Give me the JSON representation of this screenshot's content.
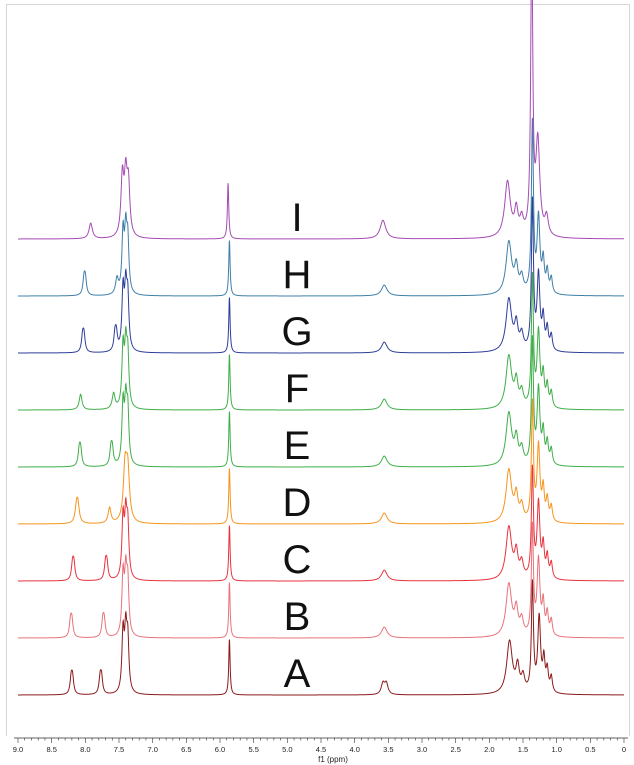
{
  "chart_data": {
    "type": "line",
    "title": "",
    "xlabel": "f1 (ppm)",
    "ylabel": "",
    "x_reversed": true,
    "xlim": [
      9.0,
      0.0
    ],
    "x_ticks": [
      "9.0",
      "8.5",
      "8.0",
      "7.5",
      "7.0",
      "6.5",
      "6.0",
      "5.5",
      "5.0",
      "4.5",
      "4.0",
      "3.5",
      "3.0",
      "2.5",
      "2.0",
      "1.5",
      "1.0",
      "0.5",
      "0"
    ],
    "grid": false,
    "legend": "none",
    "series": [
      {
        "name": "A",
        "color": "#8b1a1a",
        "peaks": [
          {
            "ppm": 8.21,
            "h": 0.05,
            "w": 0.02
          },
          {
            "ppm": 8.19,
            "h": 0.05,
            "w": 0.02
          },
          {
            "ppm": 7.78,
            "h": 0.05,
            "w": 0.02
          },
          {
            "ppm": 7.76,
            "h": 0.05,
            "w": 0.02
          },
          {
            "ppm": 7.44,
            "h": 0.19,
            "w": 0.02
          },
          {
            "ppm": 7.4,
            "h": 0.18,
            "w": 0.02
          },
          {
            "ppm": 7.37,
            "h": 0.16,
            "w": 0.02
          },
          {
            "ppm": 5.86,
            "h": 0.18,
            "w": 0.012
          },
          {
            "ppm": 3.58,
            "h": 0.035,
            "w": 0.03
          },
          {
            "ppm": 3.53,
            "h": 0.035,
            "w": 0.03
          },
          {
            "ppm": 1.7,
            "h": 0.17,
            "w": 0.05
          },
          {
            "ppm": 1.58,
            "h": 0.08,
            "w": 0.03
          },
          {
            "ppm": 1.5,
            "h": 0.05,
            "w": 0.03
          },
          {
            "ppm": 1.36,
            "h": 0.35,
            "w": 0.018
          },
          {
            "ppm": 1.26,
            "h": 0.24,
            "w": 0.025
          },
          {
            "ppm": 1.19,
            "h": 0.1,
            "w": 0.02
          },
          {
            "ppm": 1.14,
            "h": 0.07,
            "w": 0.02
          },
          {
            "ppm": 1.08,
            "h": 0.05,
            "w": 0.02
          }
        ]
      },
      {
        "name": "B",
        "color": "#e8727b",
        "peaks": [
          {
            "ppm": 8.22,
            "h": 0.05,
            "w": 0.02
          },
          {
            "ppm": 8.2,
            "h": 0.05,
            "w": 0.02
          },
          {
            "ppm": 7.74,
            "h": 0.05,
            "w": 0.02
          },
          {
            "ppm": 7.72,
            "h": 0.05,
            "w": 0.02
          },
          {
            "ppm": 7.44,
            "h": 0.19,
            "w": 0.02
          },
          {
            "ppm": 7.4,
            "h": 0.18,
            "w": 0.02
          },
          {
            "ppm": 7.37,
            "h": 0.16,
            "w": 0.02
          },
          {
            "ppm": 5.86,
            "h": 0.18,
            "w": 0.012
          },
          {
            "ppm": 3.56,
            "h": 0.035,
            "w": 0.05
          },
          {
            "ppm": 1.71,
            "h": 0.17,
            "w": 0.05
          },
          {
            "ppm": 1.6,
            "h": 0.08,
            "w": 0.03
          },
          {
            "ppm": 1.52,
            "h": 0.05,
            "w": 0.03
          },
          {
            "ppm": 1.36,
            "h": 0.35,
            "w": 0.018
          },
          {
            "ppm": 1.27,
            "h": 0.24,
            "w": 0.025
          },
          {
            "ppm": 1.2,
            "h": 0.1,
            "w": 0.02
          },
          {
            "ppm": 1.14,
            "h": 0.07,
            "w": 0.02
          },
          {
            "ppm": 1.08,
            "h": 0.05,
            "w": 0.02
          }
        ]
      },
      {
        "name": "C",
        "color": "#e8323c",
        "peaks": [
          {
            "ppm": 8.19,
            "h": 0.05,
            "w": 0.02
          },
          {
            "ppm": 8.17,
            "h": 0.05,
            "w": 0.02
          },
          {
            "ppm": 7.7,
            "h": 0.05,
            "w": 0.02
          },
          {
            "ppm": 7.68,
            "h": 0.05,
            "w": 0.02
          },
          {
            "ppm": 7.44,
            "h": 0.19,
            "w": 0.02
          },
          {
            "ppm": 7.4,
            "h": 0.18,
            "w": 0.02
          },
          {
            "ppm": 7.37,
            "h": 0.16,
            "w": 0.02
          },
          {
            "ppm": 5.86,
            "h": 0.18,
            "w": 0.012
          },
          {
            "ppm": 3.56,
            "h": 0.035,
            "w": 0.05
          },
          {
            "ppm": 1.71,
            "h": 0.17,
            "w": 0.05
          },
          {
            "ppm": 1.6,
            "h": 0.08,
            "w": 0.03
          },
          {
            "ppm": 1.52,
            "h": 0.05,
            "w": 0.03
          },
          {
            "ppm": 1.36,
            "h": 0.35,
            "w": 0.018
          },
          {
            "ppm": 1.27,
            "h": 0.24,
            "w": 0.025
          },
          {
            "ppm": 1.2,
            "h": 0.1,
            "w": 0.02
          },
          {
            "ppm": 1.14,
            "h": 0.07,
            "w": 0.02
          },
          {
            "ppm": 1.08,
            "h": 0.05,
            "w": 0.02
          }
        ]
      },
      {
        "name": "D",
        "color": "#f7941d",
        "peaks": [
          {
            "ppm": 8.13,
            "h": 0.05,
            "w": 0.025
          },
          {
            "ppm": 8.11,
            "h": 0.05,
            "w": 0.025
          },
          {
            "ppm": 7.64,
            "h": 0.05,
            "w": 0.025
          },
          {
            "ppm": 7.41,
            "h": 0.17,
            "w": 0.03
          },
          {
            "ppm": 7.37,
            "h": 0.16,
            "w": 0.03
          },
          {
            "ppm": 5.86,
            "h": 0.18,
            "w": 0.012
          },
          {
            "ppm": 3.56,
            "h": 0.035,
            "w": 0.05
          },
          {
            "ppm": 1.71,
            "h": 0.17,
            "w": 0.05
          },
          {
            "ppm": 1.6,
            "h": 0.08,
            "w": 0.03
          },
          {
            "ppm": 1.52,
            "h": 0.05,
            "w": 0.03
          },
          {
            "ppm": 1.36,
            "h": 0.38,
            "w": 0.018
          },
          {
            "ppm": 1.27,
            "h": 0.24,
            "w": 0.025
          },
          {
            "ppm": 1.2,
            "h": 0.1,
            "w": 0.02
          },
          {
            "ppm": 1.14,
            "h": 0.07,
            "w": 0.02
          },
          {
            "ppm": 1.08,
            "h": 0.05,
            "w": 0.02
          }
        ]
      },
      {
        "name": "E",
        "color": "#3fae49",
        "peaks": [
          {
            "ppm": 8.09,
            "h": 0.05,
            "w": 0.02
          },
          {
            "ppm": 8.07,
            "h": 0.05,
            "w": 0.02
          },
          {
            "ppm": 7.62,
            "h": 0.05,
            "w": 0.02
          },
          {
            "ppm": 7.6,
            "h": 0.05,
            "w": 0.02
          },
          {
            "ppm": 7.44,
            "h": 0.19,
            "w": 0.02
          },
          {
            "ppm": 7.4,
            "h": 0.18,
            "w": 0.02
          },
          {
            "ppm": 7.37,
            "h": 0.16,
            "w": 0.02
          },
          {
            "ppm": 5.86,
            "h": 0.18,
            "w": 0.012
          },
          {
            "ppm": 3.56,
            "h": 0.035,
            "w": 0.05
          },
          {
            "ppm": 1.71,
            "h": 0.17,
            "w": 0.05
          },
          {
            "ppm": 1.6,
            "h": 0.08,
            "w": 0.03
          },
          {
            "ppm": 1.52,
            "h": 0.05,
            "w": 0.03
          },
          {
            "ppm": 1.36,
            "h": 0.4,
            "w": 0.018
          },
          {
            "ppm": 1.27,
            "h": 0.24,
            "w": 0.025
          },
          {
            "ppm": 1.2,
            "h": 0.1,
            "w": 0.02
          },
          {
            "ppm": 1.14,
            "h": 0.07,
            "w": 0.02
          },
          {
            "ppm": 1.08,
            "h": 0.05,
            "w": 0.02
          }
        ]
      },
      {
        "name": "F",
        "color": "#3fae49",
        "peaks": [
          {
            "ppm": 8.07,
            "h": 0.05,
            "w": 0.025
          },
          {
            "ppm": 7.58,
            "h": 0.05,
            "w": 0.025
          },
          {
            "ppm": 7.44,
            "h": 0.19,
            "w": 0.02
          },
          {
            "ppm": 7.4,
            "h": 0.18,
            "w": 0.02
          },
          {
            "ppm": 7.37,
            "h": 0.16,
            "w": 0.02
          },
          {
            "ppm": 5.86,
            "h": 0.18,
            "w": 0.012
          },
          {
            "ppm": 3.56,
            "h": 0.035,
            "w": 0.05
          },
          {
            "ppm": 1.71,
            "h": 0.17,
            "w": 0.05
          },
          {
            "ppm": 1.6,
            "h": 0.08,
            "w": 0.03
          },
          {
            "ppm": 1.52,
            "h": 0.05,
            "w": 0.03
          },
          {
            "ppm": 1.36,
            "h": 0.42,
            "w": 0.018
          },
          {
            "ppm": 1.27,
            "h": 0.24,
            "w": 0.025
          },
          {
            "ppm": 1.2,
            "h": 0.1,
            "w": 0.02
          },
          {
            "ppm": 1.14,
            "h": 0.07,
            "w": 0.02
          },
          {
            "ppm": 1.08,
            "h": 0.05,
            "w": 0.02
          }
        ]
      },
      {
        "name": "G",
        "color": "#2e3d9a",
        "peaks": [
          {
            "ppm": 8.04,
            "h": 0.05,
            "w": 0.02
          },
          {
            "ppm": 8.02,
            "h": 0.05,
            "w": 0.02
          },
          {
            "ppm": 7.56,
            "h": 0.05,
            "w": 0.02
          },
          {
            "ppm": 7.54,
            "h": 0.05,
            "w": 0.02
          },
          {
            "ppm": 7.44,
            "h": 0.19,
            "w": 0.02
          },
          {
            "ppm": 7.4,
            "h": 0.18,
            "w": 0.02
          },
          {
            "ppm": 7.37,
            "h": 0.16,
            "w": 0.02
          },
          {
            "ppm": 5.86,
            "h": 0.18,
            "w": 0.012
          },
          {
            "ppm": 3.56,
            "h": 0.035,
            "w": 0.05
          },
          {
            "ppm": 1.71,
            "h": 0.17,
            "w": 0.05
          },
          {
            "ppm": 1.6,
            "h": 0.08,
            "w": 0.03
          },
          {
            "ppm": 1.52,
            "h": 0.05,
            "w": 0.03
          },
          {
            "ppm": 1.36,
            "h": 0.48,
            "w": 0.018
          },
          {
            "ppm": 1.27,
            "h": 0.24,
            "w": 0.025
          },
          {
            "ppm": 1.2,
            "h": 0.1,
            "w": 0.02
          },
          {
            "ppm": 1.14,
            "h": 0.07,
            "w": 0.02
          },
          {
            "ppm": 1.08,
            "h": 0.05,
            "w": 0.02
          }
        ]
      },
      {
        "name": "H",
        "color": "#3f7fa8",
        "peaks": [
          {
            "ppm": 8.02,
            "h": 0.05,
            "w": 0.02
          },
          {
            "ppm": 8.0,
            "h": 0.05,
            "w": 0.02
          },
          {
            "ppm": 7.53,
            "h": 0.05,
            "w": 0.025
          },
          {
            "ppm": 7.44,
            "h": 0.19,
            "w": 0.02
          },
          {
            "ppm": 7.4,
            "h": 0.18,
            "w": 0.02
          },
          {
            "ppm": 7.37,
            "h": 0.16,
            "w": 0.02
          },
          {
            "ppm": 5.86,
            "h": 0.18,
            "w": 0.012
          },
          {
            "ppm": 3.56,
            "h": 0.035,
            "w": 0.05
          },
          {
            "ppm": 1.71,
            "h": 0.17,
            "w": 0.05
          },
          {
            "ppm": 1.6,
            "h": 0.08,
            "w": 0.03
          },
          {
            "ppm": 1.52,
            "h": 0.05,
            "w": 0.03
          },
          {
            "ppm": 1.36,
            "h": 0.55,
            "w": 0.018
          },
          {
            "ppm": 1.27,
            "h": 0.24,
            "w": 0.025
          },
          {
            "ppm": 1.2,
            "h": 0.1,
            "w": 0.02
          },
          {
            "ppm": 1.14,
            "h": 0.07,
            "w": 0.02
          },
          {
            "ppm": 1.08,
            "h": 0.05,
            "w": 0.02
          }
        ]
      },
      {
        "name": "I",
        "color": "#a44bb3",
        "peaks": [
          {
            "ppm": 7.92,
            "h": 0.05,
            "w": 0.03
          },
          {
            "ppm": 7.45,
            "h": 0.19,
            "w": 0.025
          },
          {
            "ppm": 7.4,
            "h": 0.18,
            "w": 0.025
          },
          {
            "ppm": 7.36,
            "h": 0.16,
            "w": 0.025
          },
          {
            "ppm": 5.88,
            "h": 0.18,
            "w": 0.012
          },
          {
            "ppm": 3.58,
            "h": 0.06,
            "w": 0.05
          },
          {
            "ppm": 1.73,
            "h": 0.18,
            "w": 0.05
          },
          {
            "ppm": 1.6,
            "h": 0.08,
            "w": 0.03
          },
          {
            "ppm": 1.52,
            "h": 0.05,
            "w": 0.03
          },
          {
            "ppm": 1.37,
            "h": 0.95,
            "w": 0.018
          },
          {
            "ppm": 1.28,
            "h": 0.3,
            "w": 0.035
          },
          {
            "ppm": 1.15,
            "h": 0.06,
            "w": 0.03
          }
        ]
      }
    ]
  }
}
